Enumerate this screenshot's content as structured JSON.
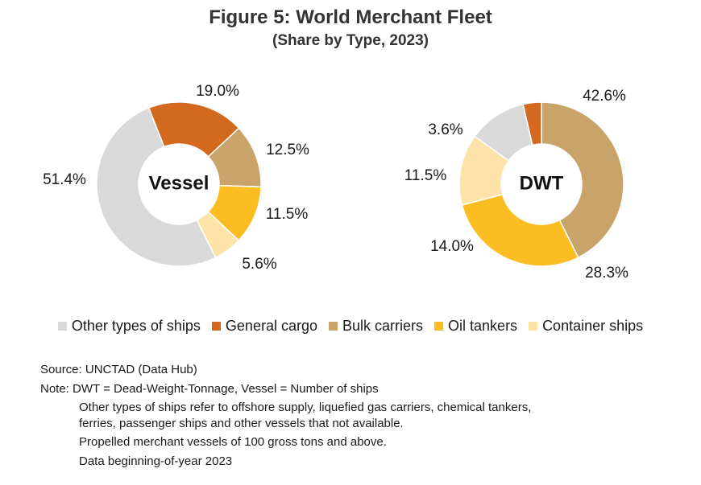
{
  "title": "Figure 5: World Merchant Fleet",
  "subtitle": "(Share by Type, 2023)",
  "legend": [
    {
      "label": "Other types of ships",
      "color": "#d9d9d9"
    },
    {
      "label": "General cargo",
      "color": "#d2691e"
    },
    {
      "label": "Bulk carriers",
      "color": "#c9a46a"
    },
    {
      "label": "Oil tankers",
      "color": "#fbbd22"
    },
    {
      "label": "Container ships",
      "color": "#fde3a8"
    }
  ],
  "chart_data": [
    {
      "type": "pie",
      "donut": true,
      "center_label": "Vessel",
      "categories": [
        "General cargo",
        "Bulk carriers",
        "Oil tankers",
        "Container ships",
        "Other types of ships"
      ],
      "values": [
        19.0,
        12.5,
        11.5,
        5.6,
        51.4
      ],
      "value_labels": [
        "19.0%",
        "12.5%",
        "11.5%",
        "5.6%",
        "51.4%"
      ],
      "colors": [
        "#d2691e",
        "#c9a46a",
        "#fbbd22",
        "#fde3a8",
        "#d9d9d9"
      ]
    },
    {
      "type": "pie",
      "donut": true,
      "center_label": "DWT",
      "categories": [
        "Bulk carriers",
        "Oil tankers",
        "Container ships",
        "Other types of ships",
        "General cargo"
      ],
      "values": [
        42.6,
        28.3,
        14.0,
        11.5,
        3.6
      ],
      "value_labels": [
        "42.6%",
        "28.3%",
        "14.0%",
        "11.5%",
        "3.6%"
      ],
      "colors": [
        "#c9a46a",
        "#fbbd22",
        "#fde3a8",
        "#d9d9d9",
        "#d2691e"
      ]
    }
  ],
  "notes": {
    "source": "Source: UNCTAD (Data Hub)",
    "note": "Note: DWT = Dead-Weight-Tonnage, Vessel = Number of  ships",
    "other_types_line1": "Other types of ships refer to offshore supply, liquefied gas carriers, chemical tankers,",
    "other_types_line2": "ferries, passenger ships and other vessels that not available.",
    "propelled": "Propelled merchant vessels of 100 gross tons and above.",
    "data_begin": "Data beginning-of-year 2023"
  }
}
